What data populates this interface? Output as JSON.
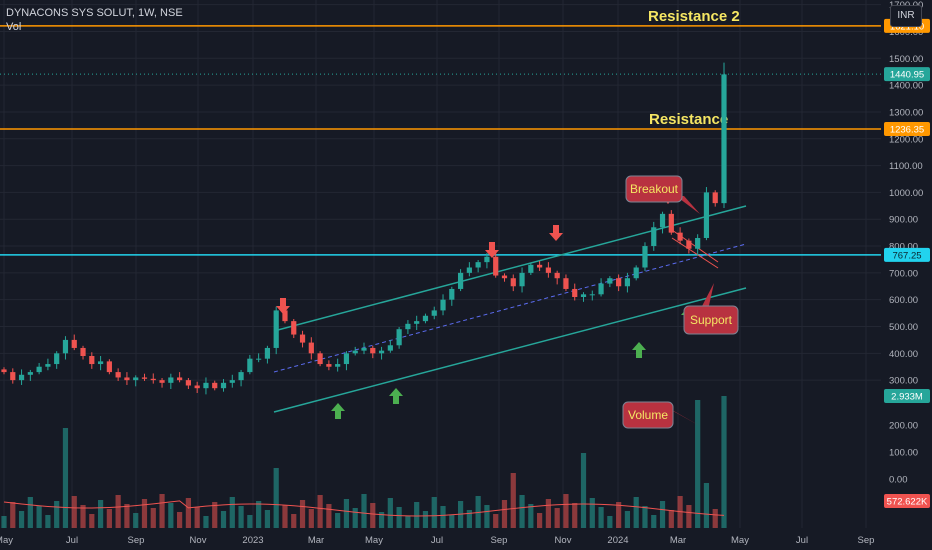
{
  "header": {
    "symbol_line": "DYNACONS SYS SOLUT, 1W, NSE",
    "volume_label": "Vol",
    "currency_button": "INR"
  },
  "colors": {
    "background": "#161a25",
    "bull": "#26a69a",
    "bear": "#ef5350",
    "resistance": "#ff9800",
    "support": "#22d3ee",
    "channel": "#26a69a",
    "midline": "#5b6cf0",
    "annotation_fill": "#b83240",
    "annotation_text": "#f5e663"
  },
  "chart_data": {
    "type": "candlestick",
    "price_axis": {
      "ticks": [
        "1700.00",
        "1600.00",
        "1500.00",
        "1400.00",
        "1300.00",
        "1200.00",
        "1100.00",
        "1000.00",
        "900.00",
        "800.00",
        "700.00",
        "600.00",
        "500.00",
        "400.00",
        "300.00"
      ],
      "range": [
        250,
        1760
      ]
    },
    "volume_axis": {
      "ticks": [
        "200.00",
        "100.00",
        "0.00"
      ]
    },
    "time_axis": {
      "labels": [
        "May",
        "Jul",
        "Sep",
        "Nov",
        "2023",
        "Mar",
        "May",
        "Jul",
        "Sep",
        "Nov",
        "2024",
        "Mar",
        "May",
        "Jul",
        "Sep"
      ]
    },
    "horizontal_levels": [
      {
        "label": "Resistance 2",
        "value": 1621.1,
        "price_tag": "1621.10",
        "color": "#ff9800"
      },
      {
        "label": "Resistance",
        "value": 1236.35,
        "price_tag": "1236.35",
        "color": "#ff9800"
      },
      {
        "label": "",
        "value": 767.25,
        "price_tag": "767.25",
        "color": "#22d3ee"
      }
    ],
    "last_price": {
      "value": 1440.95,
      "tag": "1440.95"
    },
    "volume_tags": {
      "last": "2.933M",
      "average": "572.622K"
    },
    "annotations": [
      "Breakout",
      "Support",
      "Volume"
    ],
    "closes_approx": [
      330,
      300,
      320,
      330,
      350,
      360,
      400,
      450,
      420,
      390,
      360,
      370,
      330,
      310,
      300,
      310,
      305,
      300,
      290,
      310,
      300,
      280,
      270,
      290,
      270,
      290,
      300,
      330,
      380,
      380,
      420,
      560,
      520,
      470,
      440,
      400,
      360,
      350,
      360,
      400,
      410,
      420,
      400,
      410,
      430,
      490,
      510,
      520,
      540,
      560,
      600,
      640,
      700,
      720,
      740,
      760,
      690,
      680,
      650,
      700,
      730,
      720,
      700,
      680,
      640,
      610,
      620,
      620,
      660,
      680,
      650,
      680,
      720,
      800,
      870,
      920,
      850,
      820,
      790,
      830,
      1000,
      960,
      1440
    ]
  }
}
